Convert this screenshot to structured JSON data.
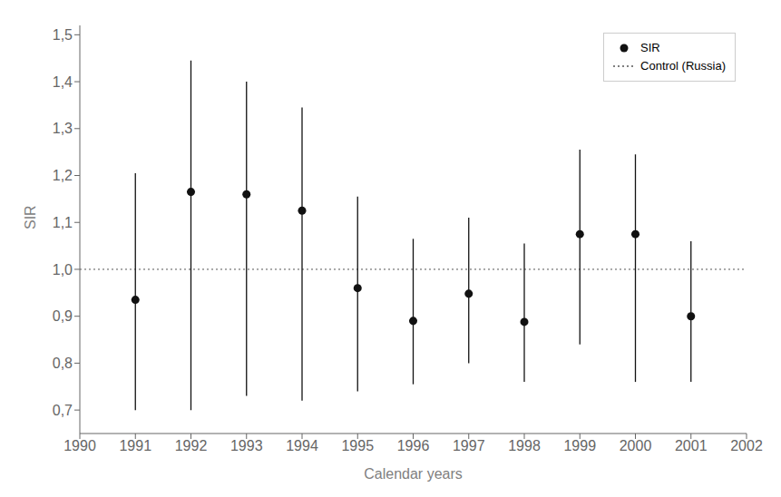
{
  "chart_data": {
    "type": "scatter",
    "x": [
      1991,
      1992,
      1993,
      1994,
      1995,
      1996,
      1997,
      1998,
      1999,
      2000,
      2001
    ],
    "series": [
      {
        "name": "SIR",
        "color": "#111111",
        "marker": "circle",
        "values": [
          0.935,
          1.165,
          1.16,
          1.125,
          0.96,
          0.89,
          0.948,
          0.888,
          1.075,
          1.075,
          0.9
        ],
        "upper": [
          1.205,
          1.445,
          1.4,
          1.345,
          1.155,
          1.065,
          1.11,
          1.055,
          1.255,
          1.245,
          1.06
        ],
        "lower": [
          0.7,
          0.7,
          0.73,
          0.72,
          0.74,
          0.755,
          0.8,
          0.76,
          0.84,
          0.76,
          0.76
        ]
      }
    ],
    "reference_lines": [
      {
        "name": "Control (Russia)",
        "value": 1.0,
        "color": "#555555",
        "line_style": "dotted"
      }
    ],
    "xlabel": "Calendar years",
    "ylabel": "SIR",
    "xlim": [
      1990,
      2002
    ],
    "xticks": [
      1990,
      1991,
      1992,
      1993,
      1994,
      1995,
      1996,
      1997,
      1998,
      1999,
      2000,
      2001,
      2002
    ],
    "ylim": [
      0.65,
      1.52
    ],
    "yticks": [
      {
        "value": 0.7,
        "label": "0,7"
      },
      {
        "value": 0.8,
        "label": "0,8"
      },
      {
        "value": 0.9,
        "label": "0,9"
      },
      {
        "value": 1.0,
        "label": "1,0"
      },
      {
        "value": 1.1,
        "label": "1,1"
      },
      {
        "value": 1.2,
        "label": "1,2"
      },
      {
        "value": 1.3,
        "label": "1,3"
      },
      {
        "value": 1.4,
        "label": "1,4"
      },
      {
        "value": 1.5,
        "label": "1,5"
      }
    ],
    "grid": false,
    "legend": "upper right"
  }
}
